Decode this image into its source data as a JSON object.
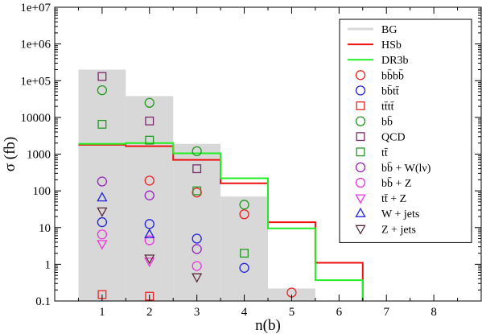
{
  "chart_data": {
    "type": "scatter",
    "title": "",
    "xlabel": "n(b)",
    "ylabel": "σ (fb)",
    "xlim": [
      0,
      9
    ],
    "ylim": [
      0.1,
      10000000
    ],
    "yscale": "log",
    "grid": false,
    "legend_position": "top-right",
    "x_ticks": [
      "1",
      "2",
      "3",
      "4",
      "5",
      "6",
      "7",
      "8"
    ],
    "y_ticks": [
      "0.1",
      "1",
      "10",
      "100",
      "1000",
      "10000",
      "1e+05",
      "1e+06",
      "1e+07"
    ],
    "histograms": [
      {
        "name": "BG",
        "style": "filled",
        "color": "#d8d8d8",
        "edges": [
          0.5,
          1.5,
          2.5,
          3.5,
          4.5,
          5.5
        ],
        "values": [
          200000,
          38000,
          1900,
          70,
          0.22
        ]
      },
      {
        "name": "HSb",
        "style": "step",
        "color": "#ee1111",
        "edges": [
          0.5,
          1.5,
          2.5,
          3.5,
          4.5,
          5.5,
          6.5
        ],
        "values": [
          1800,
          1650,
          700,
          160,
          14,
          1.1
        ]
      },
      {
        "name": "DR3b",
        "style": "step",
        "color": "#22ee22",
        "edges": [
          0.5,
          1.5,
          2.5,
          3.5,
          4.5,
          5.5,
          6.5
        ],
        "values": [
          1900,
          2000,
          1050,
          220,
          9.5,
          0.37
        ]
      }
    ],
    "series": [
      {
        "name": "bb̄bb̄",
        "marker": "circle",
        "color": "#ee2222",
        "x": [
          2,
          3,
          4,
          5
        ],
        "y": [
          190,
          90,
          23,
          0.17
        ]
      },
      {
        "name": "bb̄tt̄",
        "marker": "circle",
        "color": "#2222dd",
        "x": [
          1,
          2,
          3,
          4
        ],
        "y": [
          14,
          12.5,
          5,
          0.8
        ]
      },
      {
        "name": "tt̄tt̄",
        "marker": "square",
        "color": "#ee2222",
        "x": [
          1,
          2
        ],
        "y": [
          0.15,
          0.135
        ]
      },
      {
        "name": "bb̄",
        "marker": "circle",
        "color": "#229922",
        "x": [
          1,
          2,
          3,
          4
        ],
        "y": [
          55000,
          25000,
          1200,
          42
        ]
      },
      {
        "name": "QCD",
        "marker": "square",
        "color": "#7a2a6a",
        "x": [
          1,
          2,
          3
        ],
        "y": [
          130000,
          8000,
          400
        ]
      },
      {
        "name": "tt̄",
        "marker": "square",
        "color": "#229922",
        "x": [
          1,
          2,
          3,
          4
        ],
        "y": [
          6500,
          2400,
          100,
          2
        ]
      },
      {
        "name": "bb̄ + W(lν)",
        "marker": "circle",
        "color": "#9922bb",
        "x": [
          1,
          2,
          3
        ],
        "y": [
          180,
          75,
          2.6
        ]
      },
      {
        "name": "bb̄ + Z",
        "marker": "circle",
        "color": "#ee33dd",
        "x": [
          1,
          2,
          3
        ],
        "y": [
          6.5,
          4.5,
          0.9
        ]
      },
      {
        "name": "tt̄ + Z",
        "marker": "triangle-down",
        "color": "#ee33dd",
        "x": [
          1,
          2
        ],
        "y": [
          3.6,
          1.2
        ]
      },
      {
        "name": "W + jets",
        "marker": "triangle-up",
        "color": "#2222dd",
        "x": [
          1,
          2
        ],
        "y": [
          65,
          6.5
        ]
      },
      {
        "name": "Z + jets",
        "marker": "triangle-down",
        "color": "#5a2a3a",
        "x": [
          1,
          2,
          3
        ],
        "y": [
          28,
          1.45,
          0.45
        ]
      }
    ]
  }
}
